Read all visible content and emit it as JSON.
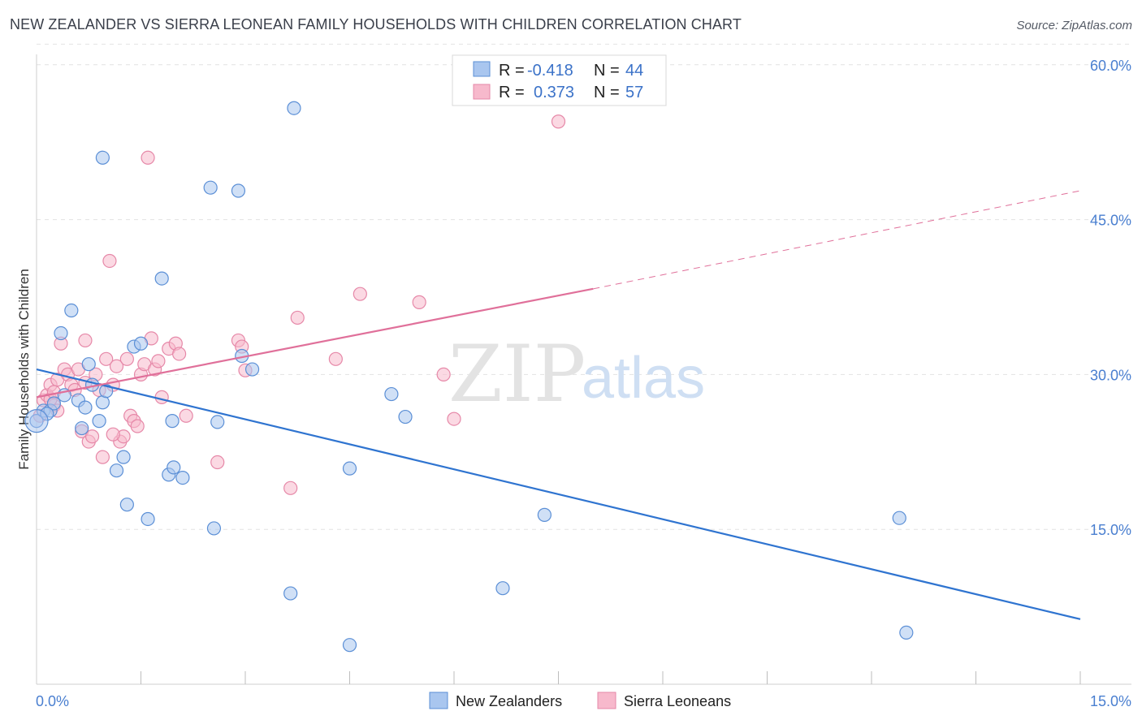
{
  "header": {
    "title": "NEW ZEALANDER VS SIERRA LEONEAN FAMILY HOUSEHOLDS WITH CHILDREN CORRELATION CHART",
    "source": "Source: ZipAtlas.com"
  },
  "watermark": {
    "zip": "ZIP",
    "atlas": "atlas"
  },
  "colors": {
    "blue_fill": "#a9c6ef",
    "blue_stroke": "#5b8fd6",
    "blue_line": "#2f74d0",
    "pink_fill": "#f7b9cc",
    "pink_stroke": "#e688a8",
    "pink_line": "#e0709a",
    "grid": "#e2e2e2",
    "tick_label": "#4a7fd0"
  },
  "legend_top": {
    "rows": [
      {
        "r_label": "R =",
        "r_value": "-0.418",
        "n_label": "N =",
        "n_value": "44"
      },
      {
        "r_label": "R =",
        "r_value": "0.373",
        "n_label": "N =",
        "n_value": "57"
      }
    ]
  },
  "legend_bottom": {
    "items": [
      "New Zealanders",
      "Sierra Leoneans"
    ]
  },
  "chart_data": {
    "type": "scatter",
    "title": "NEW ZEALANDER VS SIERRA LEONEAN FAMILY HOUSEHOLDS WITH CHILDREN CORRELATION CHART",
    "xlabel": "",
    "ylabel": "Family Households with Children",
    "xlim": [
      0,
      15
    ],
    "ylim": [
      0,
      62
    ],
    "x_tick_labels": [
      "0.0%",
      "15.0%"
    ],
    "y_ticks": [
      15,
      30,
      45,
      60
    ],
    "y_tick_labels": [
      "15.0%",
      "30.0%",
      "45.0%",
      "60.0%"
    ],
    "grid": true,
    "legend_position": "top-center",
    "series": [
      {
        "name": "New Zealanders",
        "color": "#a9c6ef",
        "R": -0.418,
        "N": 44,
        "points": [
          [
            0.0,
            25.5
          ],
          [
            0.1,
            26.5
          ],
          [
            0.2,
            26.5
          ],
          [
            0.25,
            27.2
          ],
          [
            0.35,
            34.0
          ],
          [
            0.5,
            36.2
          ],
          [
            0.6,
            27.5
          ],
          [
            0.65,
            24.8
          ],
          [
            0.7,
            26.8
          ],
          [
            0.75,
            31.0
          ],
          [
            0.8,
            29.0
          ],
          [
            0.9,
            25.5
          ],
          [
            0.95,
            27.3
          ],
          [
            1.0,
            28.4
          ],
          [
            1.15,
            20.7
          ],
          [
            1.25,
            22.0
          ],
          [
            1.3,
            17.4
          ],
          [
            1.4,
            32.7
          ],
          [
            1.5,
            33.0
          ],
          [
            1.6,
            16.0
          ],
          [
            1.8,
            39.3
          ],
          [
            1.9,
            20.3
          ],
          [
            1.95,
            25.5
          ],
          [
            1.97,
            21.0
          ],
          [
            2.1,
            20.0
          ],
          [
            2.5,
            48.1
          ],
          [
            2.55,
            15.1
          ],
          [
            2.6,
            25.4
          ],
          [
            2.9,
            47.8
          ],
          [
            2.95,
            31.8
          ],
          [
            3.1,
            30.5
          ],
          [
            3.65,
            8.8
          ],
          [
            3.7,
            55.8
          ],
          [
            4.5,
            20.9
          ],
          [
            4.5,
            3.8
          ],
          [
            5.1,
            28.1
          ],
          [
            5.3,
            25.9
          ],
          [
            6.7,
            9.3
          ],
          [
            7.3,
            16.4
          ],
          [
            12.4,
            16.1
          ],
          [
            12.5,
            5.0
          ],
          [
            0.95,
            51.0
          ],
          [
            0.15,
            26.2
          ],
          [
            0.4,
            28.0
          ]
        ]
      },
      {
        "name": "Sierra Leoneans",
        "color": "#f7b9cc",
        "R": 0.373,
        "N": 57,
        "points": [
          [
            0.05,
            26.0
          ],
          [
            0.1,
            27.5
          ],
          [
            0.15,
            28.0
          ],
          [
            0.2,
            29.0
          ],
          [
            0.25,
            27.0
          ],
          [
            0.3,
            29.5
          ],
          [
            0.35,
            33.0
          ],
          [
            0.4,
            30.5
          ],
          [
            0.45,
            30.0
          ],
          [
            0.5,
            29.0
          ],
          [
            0.55,
            28.5
          ],
          [
            0.6,
            30.5
          ],
          [
            0.65,
            24.5
          ],
          [
            0.7,
            33.3
          ],
          [
            0.75,
            23.5
          ],
          [
            0.8,
            24.0
          ],
          [
            0.85,
            30.0
          ],
          [
            0.9,
            28.5
          ],
          [
            0.95,
            22.0
          ],
          [
            1.0,
            31.5
          ],
          [
            1.05,
            41.0
          ],
          [
            1.1,
            29.0
          ],
          [
            1.15,
            30.8
          ],
          [
            1.2,
            23.5
          ],
          [
            1.25,
            24.0
          ],
          [
            1.3,
            31.5
          ],
          [
            1.35,
            26.0
          ],
          [
            1.4,
            25.5
          ],
          [
            1.45,
            25.0
          ],
          [
            1.5,
            30.0
          ],
          [
            1.55,
            31.0
          ],
          [
            1.6,
            51.0
          ],
          [
            1.65,
            33.5
          ],
          [
            1.7,
            30.5
          ],
          [
            1.75,
            31.3
          ],
          [
            1.8,
            27.8
          ],
          [
            1.9,
            32.5
          ],
          [
            2.0,
            33.0
          ],
          [
            2.05,
            32.0
          ],
          [
            2.15,
            26.0
          ],
          [
            2.6,
            21.5
          ],
          [
            2.9,
            33.3
          ],
          [
            2.95,
            32.7
          ],
          [
            3.0,
            30.4
          ],
          [
            3.65,
            19.0
          ],
          [
            3.75,
            35.5
          ],
          [
            4.3,
            31.5
          ],
          [
            4.65,
            37.8
          ],
          [
            5.5,
            37.0
          ],
          [
            5.85,
            30.0
          ],
          [
            6.0,
            25.7
          ],
          [
            7.5,
            54.5
          ],
          [
            0.2,
            27.6
          ],
          [
            0.25,
            28.3
          ],
          [
            0.3,
            26.5
          ],
          [
            0.7,
            29.2
          ],
          [
            1.1,
            24.2
          ]
        ]
      }
    ],
    "trend_lines": [
      {
        "series": "New Zealanders",
        "x": [
          0,
          15
        ],
        "y": [
          30.5,
          6.3
        ],
        "style": "solid"
      },
      {
        "series": "Sierra Leoneans",
        "x": [
          0,
          8.0
        ],
        "y": [
          27.8,
          38.3
        ],
        "style": "solid"
      },
      {
        "series": "Sierra Leoneans",
        "x": [
          8.0,
          15
        ],
        "y": [
          38.3,
          47.8
        ],
        "style": "dashed"
      }
    ]
  }
}
